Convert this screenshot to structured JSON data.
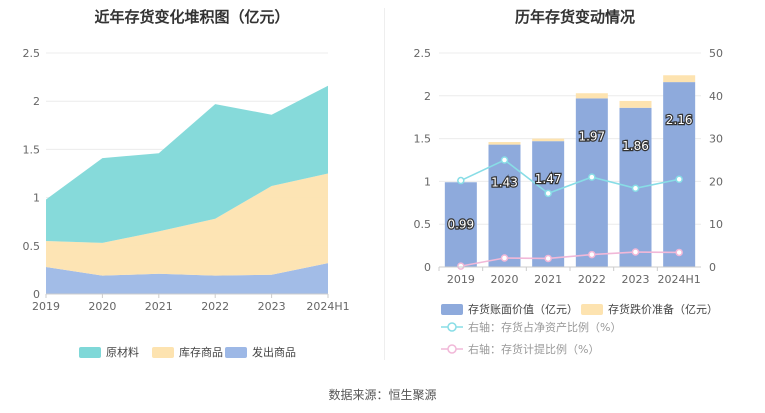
{
  "source_label": "数据来源：恒生聚源",
  "chart_data": [
    {
      "type": "area",
      "title": "近年存货变化堆积图（亿元）",
      "categories": [
        "2019",
        "2020",
        "2021",
        "2022",
        "2023",
        "2024H1"
      ],
      "ylim": [
        0,
        2.5
      ],
      "yticks": [
        "0",
        "0.5",
        "1",
        "1.5",
        "2",
        "2.5"
      ],
      "stacked": true,
      "grid": true,
      "legend_position": "bottom",
      "series": [
        {
          "name": "原材料",
          "color": "#7fd8d8",
          "values": [
            0.43,
            0.88,
            0.81,
            1.19,
            0.74,
            0.91
          ]
        },
        {
          "name": "库存商品",
          "color": "#fde3b0",
          "values": [
            0.27,
            0.34,
            0.44,
            0.59,
            0.92,
            0.93
          ]
        },
        {
          "name": "发出商品",
          "color": "#9db8e6",
          "values": [
            0.28,
            0.19,
            0.21,
            0.19,
            0.2,
            0.32
          ]
        }
      ]
    },
    {
      "type": "bar",
      "title": "历年存货变动情况",
      "categories": [
        "2019",
        "2020",
        "2021",
        "2022",
        "2023",
        "2024H1"
      ],
      "ylim_left": [
        0,
        2.5
      ],
      "yticks_left": [
        "0",
        "0.5",
        "1",
        "1.5",
        "2",
        "2.5"
      ],
      "ylim_right": [
        0,
        50
      ],
      "yticks_right": [
        "0",
        "10",
        "20",
        "30",
        "40",
        "50"
      ],
      "grid": true,
      "legend_position": "bottom",
      "series": [
        {
          "name": "存货账面价值（亿元）",
          "kind": "bar",
          "color": "#8eaadc",
          "values": [
            0.99,
            1.43,
            1.47,
            1.97,
            1.86,
            2.16
          ],
          "labels": [
            "0.99",
            "1.43",
            "1.47",
            "1.97",
            "1.86",
            "2.16"
          ]
        },
        {
          "name": "存货跌价准备（亿元）",
          "kind": "bar-stack",
          "color": "#fde3b0",
          "values": [
            0.0,
            0.03,
            0.03,
            0.06,
            0.08,
            0.08
          ]
        },
        {
          "name": "右轴：存货占净资产比例（%）",
          "kind": "line",
          "axis": "right",
          "color": "#88dde6",
          "values": [
            20.2,
            25.0,
            17.2,
            21.0,
            18.4,
            20.5
          ]
        },
        {
          "name": "右轴：存货计提比例（%）",
          "kind": "line",
          "axis": "right",
          "color": "#f1b8d8",
          "values": [
            0.2,
            2.1,
            2.0,
            2.9,
            3.5,
            3.4
          ]
        }
      ]
    }
  ]
}
